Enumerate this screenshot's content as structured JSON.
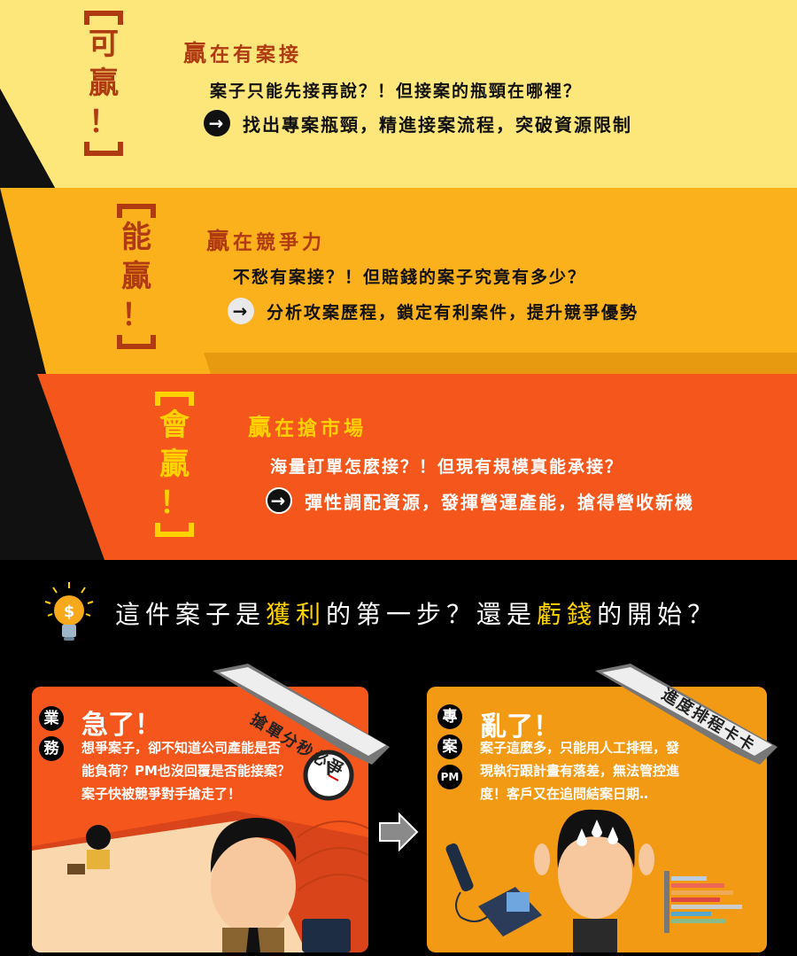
{
  "sections": [
    {
      "vertical": [
        "可",
        "贏",
        "！"
      ],
      "heading_big": "贏",
      "heading_rest": "在有案接",
      "question": "案子只能先接再說？！但接案的瓶頸在哪裡？",
      "arrow": "→",
      "answer": "找出專案瓶頸，精進接案流程，突破資源限制",
      "colors": {
        "bg": "#fde77a",
        "accent": "#b03a12",
        "arrow_bg": "#111",
        "arrow_fg": "#fff"
      }
    },
    {
      "vertical": [
        "能",
        "贏",
        "！"
      ],
      "heading_big": "贏",
      "heading_rest": "在競爭力",
      "question": "不愁有案接？！但賠錢的案子究竟有多少？",
      "arrow": "→",
      "answer": "分析攻案歷程，鎖定有利案件，提升競爭優勢",
      "colors": {
        "bg": "#fbb11b",
        "accent": "#b03a12",
        "arrow_bg": "#e9e9e9",
        "arrow_fg": "#111"
      }
    },
    {
      "vertical": [
        "會",
        "贏",
        "！"
      ],
      "heading_big": "贏",
      "heading_rest": "在搶市場",
      "question": "海量訂單怎麼接？！但現有規模真能承接？",
      "arrow": "→",
      "answer": "彈性調配資源，發揮營運產能，搶得營收新機",
      "colors": {
        "bg": "#f5561b",
        "accent": "#ffd200",
        "arrow_bg": "#111",
        "arrow_fg": "#fff"
      }
    }
  ],
  "question_line": {
    "p1": "這件案子是",
    "h1": "獲利",
    "p2": "的第一步？還是",
    "h2": "虧錢",
    "p3": "的開始？"
  },
  "cards": [
    {
      "role": [
        "業",
        "務"
      ],
      "title": "急了！",
      "ribbon": "搶單分秒必爭",
      "lines": [
        "想爭案子，卻不知道公司產能是否",
        "能負荷？PM也沒回覆是否能接案？",
        "案子快被競爭對手搶走了！"
      ],
      "bg": "#f5561b"
    },
    {
      "role": [
        "專",
        "案",
        "PM"
      ],
      "title": "亂了！",
      "ribbon": "進度排程卡卡",
      "lines": [
        "案子這麼多，只能用人工排程，發",
        "現執行跟計畫有落差，無法管控進",
        "度！客戶又在追問結案日期‥"
      ],
      "bg": "#f39a14"
    }
  ]
}
